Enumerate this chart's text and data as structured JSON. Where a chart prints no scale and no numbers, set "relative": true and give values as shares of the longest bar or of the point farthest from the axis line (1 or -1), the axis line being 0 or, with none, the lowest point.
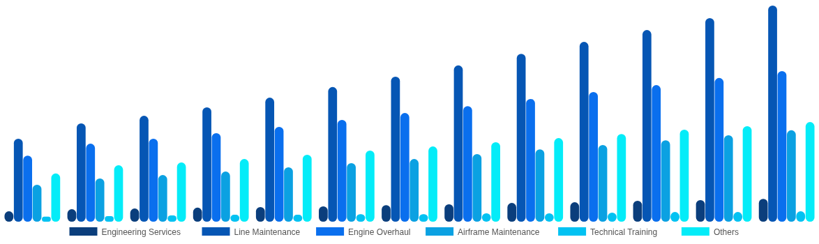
{
  "chart_data": {
    "type": "bar",
    "relative": true,
    "legend": "bottom",
    "categories": [
      null,
      null,
      null,
      null,
      null,
      null,
      null,
      null,
      null,
      null,
      null,
      null,
      null
    ],
    "series": [
      {
        "name": "Engineering Services",
        "color": "#0b3e7c",
        "values": [
          0.048,
          0.058,
          0.061,
          0.065,
          0.068,
          0.071,
          0.077,
          0.081,
          0.087,
          0.09,
          0.097,
          0.1,
          0.106
        ]
      },
      {
        "name": "Line Maintenance",
        "color": "#0656b4",
        "values": [
          0.384,
          0.455,
          0.49,
          0.529,
          0.574,
          0.623,
          0.671,
          0.723,
          0.777,
          0.832,
          0.887,
          0.942,
          1
        ]
      },
      {
        "name": "Engine Overhaul",
        "color": "#0a6fee",
        "values": [
          0.306,
          0.361,
          0.384,
          0.41,
          0.439,
          0.471,
          0.503,
          0.535,
          0.568,
          0.6,
          0.632,
          0.665,
          0.697
        ]
      },
      {
        "name": "Airframe Maintenance",
        "color": "#0ba1e2",
        "values": [
          0.171,
          0.2,
          0.216,
          0.232,
          0.252,
          0.271,
          0.29,
          0.313,
          0.335,
          0.355,
          0.377,
          0.4,
          0.423
        ]
      },
      {
        "name": "Technical Training",
        "color": "#02c2f2",
        "values": [
          0.023,
          0.026,
          0.029,
          0.032,
          0.032,
          0.035,
          0.035,
          0.039,
          0.039,
          0.042,
          0.045,
          0.045,
          0.048
        ]
      },
      {
        "name": "Others",
        "color": "#04ecf8",
        "values": [
          0.223,
          0.261,
          0.274,
          0.29,
          0.31,
          0.329,
          0.348,
          0.368,
          0.387,
          0.406,
          0.426,
          0.442,
          0.461
        ]
      }
    ]
  }
}
